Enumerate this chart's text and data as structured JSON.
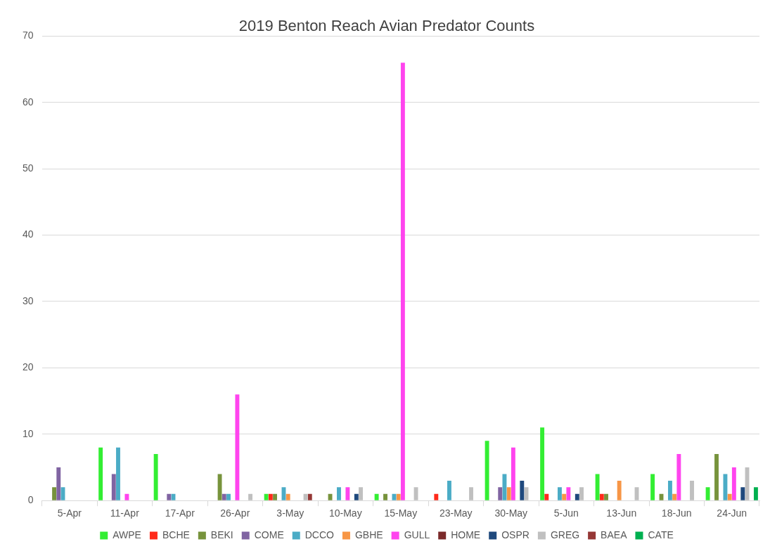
{
  "chart_data": {
    "type": "bar",
    "title": "2019 Benton Reach Avian Predator Counts",
    "categories": [
      "5-Apr",
      "11-Apr",
      "17-Apr",
      "26-Apr",
      "3-May",
      "10-May",
      "15-May",
      "23-May",
      "30-May",
      "5-Jun",
      "13-Jun",
      "18-Jun",
      "24-Jun"
    ],
    "series": [
      {
        "name": "AWPE",
        "color": "#33ee33",
        "values": [
          0,
          8,
          7,
          0,
          1,
          0,
          1,
          0,
          9,
          11,
          4,
          4,
          2
        ]
      },
      {
        "name": "BCHE",
        "color": "#ff2a1a",
        "values": [
          0,
          0,
          0,
          0,
          1,
          0,
          0,
          1,
          0,
          1,
          1,
          0,
          0
        ]
      },
      {
        "name": "BEKI",
        "color": "#77933c",
        "values": [
          2,
          0,
          0,
          4,
          1,
          1,
          1,
          0,
          0,
          0,
          1,
          1,
          7
        ]
      },
      {
        "name": "COME",
        "color": "#8064a2",
        "values": [
          5,
          4,
          1,
          1,
          0,
          0,
          0,
          0,
          2,
          0,
          0,
          0,
          0
        ]
      },
      {
        "name": "DCCO",
        "color": "#4bacc6",
        "values": [
          2,
          8,
          1,
          1,
          2,
          2,
          1,
          3,
          4,
          2,
          0,
          3,
          4
        ]
      },
      {
        "name": "GBHE",
        "color": "#f79646",
        "values": [
          0,
          0,
          0,
          0,
          1,
          0,
          1,
          0,
          2,
          1,
          3,
          1,
          1
        ]
      },
      {
        "name": "GULL",
        "color": "#ff44ee",
        "values": [
          0,
          1,
          0,
          16,
          0,
          2,
          66,
          0,
          8,
          2,
          0,
          7,
          5
        ]
      },
      {
        "name": "HOME",
        "color": "#7b2a2a",
        "values": [
          0,
          0,
          0,
          0,
          0,
          0,
          0,
          0,
          0,
          0,
          0,
          0,
          0
        ]
      },
      {
        "name": "OSPR",
        "color": "#1f497d",
        "values": [
          0,
          0,
          0,
          0,
          0,
          1,
          0,
          0,
          3,
          1,
          0,
          0,
          2
        ]
      },
      {
        "name": "GREG",
        "color": "#c0c0c0",
        "values": [
          0,
          0,
          0,
          1,
          1,
          2,
          2,
          2,
          2,
          2,
          2,
          3,
          5
        ]
      },
      {
        "name": "BAEA",
        "color": "#953735",
        "values": [
          0,
          0,
          0,
          0,
          1,
          0,
          0,
          0,
          0,
          0,
          0,
          0,
          0
        ]
      },
      {
        "name": "CATE",
        "color": "#00b050",
        "values": [
          0,
          0,
          0,
          0,
          0,
          0,
          0,
          0,
          0,
          0,
          0,
          0,
          2
        ]
      }
    ],
    "ylim": [
      0,
      70
    ],
    "yticks": [
      0,
      10,
      20,
      30,
      40,
      50,
      60,
      70
    ],
    "grid": "y",
    "legend": "bottom"
  }
}
